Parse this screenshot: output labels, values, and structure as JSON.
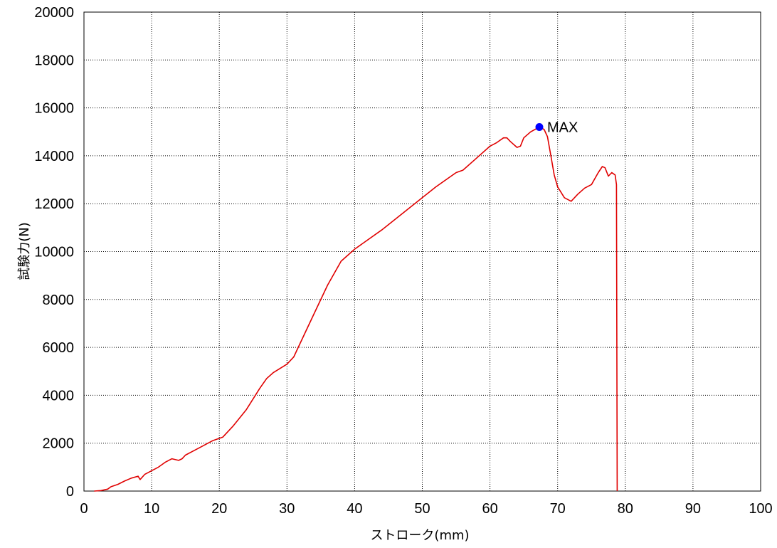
{
  "chart_data": {
    "type": "line",
    "title": "",
    "xlabel": "ストローク(mm)",
    "ylabel": "試験力(N)",
    "xlim": [
      0,
      100
    ],
    "ylim": [
      0,
      20000
    ],
    "x_ticks": [
      0,
      10,
      20,
      30,
      40,
      50,
      60,
      70,
      80,
      90,
      100
    ],
    "y_ticks": [
      0,
      2000,
      4000,
      6000,
      8000,
      10000,
      12000,
      14000,
      16000,
      18000,
      20000
    ],
    "grid": true,
    "line_color": "#e00000",
    "marker_color": "#0000ff",
    "series": [
      {
        "points": [
          [
            1.5,
            0
          ],
          [
            2.5,
            20
          ],
          [
            3.5,
            80
          ],
          [
            4,
            180
          ],
          [
            5,
            280
          ],
          [
            6,
            420
          ],
          [
            7,
            540
          ],
          [
            8,
            620
          ],
          [
            8.3,
            480
          ],
          [
            9,
            700
          ],
          [
            10,
            850
          ],
          [
            11,
            1000
          ],
          [
            12,
            1200
          ],
          [
            13,
            1350
          ],
          [
            14,
            1280
          ],
          [
            14.5,
            1350
          ],
          [
            15,
            1500
          ],
          [
            17,
            1800
          ],
          [
            19,
            2100
          ],
          [
            20.5,
            2250
          ],
          [
            22,
            2700
          ],
          [
            24,
            3400
          ],
          [
            26,
            4300
          ],
          [
            27,
            4700
          ],
          [
            28,
            4950
          ],
          [
            30,
            5300
          ],
          [
            31,
            5600
          ],
          [
            32,
            6200
          ],
          [
            34,
            7400
          ],
          [
            36,
            8600
          ],
          [
            38,
            9600
          ],
          [
            40,
            10100
          ],
          [
            44,
            10900
          ],
          [
            48,
            11800
          ],
          [
            52,
            12700
          ],
          [
            55,
            13300
          ],
          [
            56,
            13400
          ],
          [
            58,
            13900
          ],
          [
            60,
            14400
          ],
          [
            61,
            14550
          ],
          [
            62,
            14750
          ],
          [
            62.5,
            14750
          ],
          [
            63,
            14600
          ],
          [
            64,
            14350
          ],
          [
            64.5,
            14400
          ],
          [
            65,
            14750
          ],
          [
            66,
            15000
          ],
          [
            67.3,
            15200
          ],
          [
            68,
            15100
          ],
          [
            68.5,
            14800
          ],
          [
            69,
            14000
          ],
          [
            69.5,
            13200
          ],
          [
            70,
            12700
          ],
          [
            71,
            12250
          ],
          [
            72,
            12100
          ],
          [
            73,
            12400
          ],
          [
            74,
            12650
          ],
          [
            75,
            12800
          ],
          [
            76,
            13300
          ],
          [
            76.6,
            13550
          ],
          [
            77,
            13500
          ],
          [
            77.5,
            13150
          ],
          [
            78,
            13300
          ],
          [
            78.5,
            13200
          ],
          [
            78.7,
            12800
          ],
          [
            78.8,
            0
          ]
        ]
      }
    ],
    "annotations": [
      {
        "label": "MAX",
        "x": 67.3,
        "y": 15200
      }
    ]
  }
}
